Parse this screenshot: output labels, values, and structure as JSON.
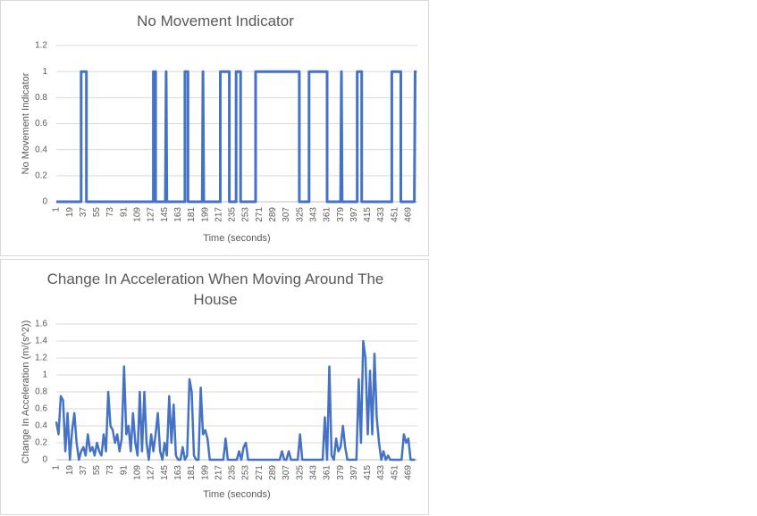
{
  "chart_data": [
    {
      "type": "line",
      "title": "No Movement Indicator",
      "x_label": "Time (seconds)",
      "y_label": "No Movement Indicator",
      "color": "#4472c4",
      "grid": true,
      "x": [
        1,
        34,
        34,
        41,
        41,
        130,
        130,
        133,
        133,
        146,
        147,
        148,
        172,
        172,
        176,
        176,
        195,
        196,
        197,
        219,
        219,
        231,
        231,
        240,
        240,
        246,
        246,
        266,
        266,
        324,
        324,
        337,
        337,
        361,
        361,
        379,
        380,
        381,
        401,
        401,
        407,
        407,
        447,
        447,
        459,
        459,
        477,
        478,
        480
      ],
      "values": [
        0,
        0,
        1,
        1,
        0,
        0,
        1,
        1,
        0,
        0,
        1,
        0,
        0,
        1,
        1,
        0,
        0,
        1,
        0,
        0,
        1,
        1,
        0,
        0,
        1,
        1,
        0,
        0,
        1,
        1,
        0,
        0,
        1,
        1,
        0,
        0,
        1,
        0,
        0,
        1,
        1,
        0,
        0,
        1,
        1,
        0,
        0,
        1,
        1
      ],
      "xlim": [
        1,
        481
      ],
      "xticks": [
        1,
        19,
        37,
        55,
        73,
        91,
        109,
        127,
        145,
        163,
        181,
        199,
        217,
        235,
        253,
        271,
        289,
        307,
        325,
        343,
        361,
        379,
        397,
        415,
        433,
        451,
        469
      ],
      "ylim": [
        0,
        1.2
      ],
      "yticks": [
        0,
        0.2,
        0.4,
        0.6,
        0.8,
        1,
        1.2
      ]
    },
    {
      "type": "line",
      "title": "Change In Acceleration When Moving Around The House",
      "x_label": "Time (seconds)",
      "y_label": "Change In Acceleration (m/(s^2))",
      "color": "#4472c4",
      "grid": true,
      "x": [
        1,
        4,
        7,
        10,
        13,
        16,
        19,
        22,
        25,
        28,
        31,
        34,
        37,
        40,
        43,
        46,
        49,
        52,
        55,
        58,
        61,
        64,
        67,
        70,
        73,
        76,
        79,
        82,
        85,
        88,
        91,
        94,
        97,
        100,
        103,
        106,
        109,
        112,
        115,
        118,
        121,
        124,
        127,
        130,
        133,
        136,
        139,
        142,
        145,
        148,
        151,
        154,
        157,
        160,
        163,
        166,
        169,
        172,
        175,
        178,
        181,
        184,
        187,
        190,
        193,
        196,
        199,
        202,
        205,
        208,
        211,
        214,
        217,
        220,
        223,
        226,
        229,
        232,
        235,
        238,
        241,
        244,
        247,
        250,
        253,
        256,
        259,
        262,
        265,
        268,
        271,
        274,
        277,
        280,
        283,
        286,
        289,
        292,
        295,
        298,
        301,
        304,
        307,
        310,
        313,
        316,
        319,
        322,
        325,
        328,
        331,
        334,
        337,
        340,
        343,
        346,
        349,
        352,
        355,
        358,
        361,
        364,
        367,
        370,
        373,
        376,
        379,
        382,
        385,
        388,
        391,
        394,
        397,
        400,
        403,
        406,
        409,
        412,
        415,
        418,
        421,
        424,
        427,
        430,
        433,
        436,
        439,
        442,
        445,
        448,
        451,
        454,
        457,
        460,
        463,
        466,
        469,
        472,
        475,
        478
      ],
      "values": [
        0.45,
        0.3,
        0.75,
        0.7,
        0.1,
        0.55,
        0,
        0.35,
        0.55,
        0.2,
        0,
        0.1,
        0.15,
        0.05,
        0.3,
        0.1,
        0.15,
        0.05,
        0.2,
        0.1,
        0.05,
        0.3,
        0.1,
        0.8,
        0.4,
        0.35,
        0.2,
        0.3,
        0.1,
        0.25,
        1.1,
        0.3,
        0.4,
        0.1,
        0.55,
        0.2,
        0.05,
        0.8,
        0.1,
        0.8,
        0.2,
        0,
        0.3,
        0.1,
        0.3,
        0.55,
        0.1,
        0,
        0.2,
        0.05,
        0.75,
        0.2,
        0.65,
        0.05,
        0,
        0,
        0.15,
        0,
        0.05,
        0.95,
        0.8,
        0.05,
        0,
        0,
        0.85,
        0.3,
        0.35,
        0.25,
        0,
        0,
        0,
        0,
        0,
        0,
        0,
        0.25,
        0,
        0,
        0,
        0,
        0,
        0.1,
        0,
        0.15,
        0.2,
        0,
        0,
        0,
        0,
        0,
        0,
        0,
        0,
        0,
        0,
        0,
        0,
        0,
        0,
        0,
        0.1,
        0,
        0,
        0.1,
        0,
        0,
        0,
        0,
        0.3,
        0,
        0,
        0,
        0,
        0,
        0,
        0,
        0,
        0,
        0,
        0.5,
        0,
        1.1,
        0.05,
        0,
        0.25,
        0.1,
        0.15,
        0.4,
        0.15,
        0,
        0,
        0,
        0,
        0,
        0.95,
        0.2,
        1.4,
        1.2,
        0.3,
        1.05,
        0.3,
        1.25,
        0.5,
        0.2,
        0,
        0.1,
        0,
        0.05,
        0,
        0,
        0,
        0,
        0,
        0,
        0.3,
        0.2,
        0.25,
        0,
        0,
        0
      ],
      "xlim": [
        1,
        481
      ],
      "xticks": [
        1,
        19,
        37,
        55,
        73,
        91,
        109,
        127,
        145,
        163,
        181,
        199,
        217,
        235,
        253,
        271,
        289,
        307,
        325,
        343,
        361,
        379,
        397,
        415,
        433,
        451,
        469
      ],
      "ylim": [
        0,
        1.6
      ],
      "yticks": [
        0,
        0.2,
        0.4,
        0.6,
        0.8,
        1,
        1.2,
        1.4,
        1.6
      ]
    }
  ]
}
